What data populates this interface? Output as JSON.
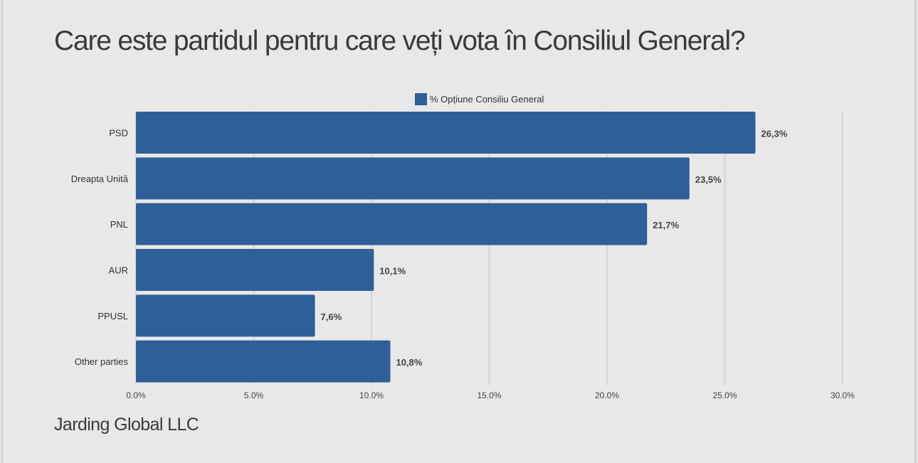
{
  "title": "Care este partidul pentru care veți vota în Consiliul General?",
  "footer": "Jarding Global LLC",
  "chart_data": {
    "type": "bar",
    "orientation": "horizontal",
    "title": "Care este partidul pentru care veți vota în Consiliul General?",
    "categories": [
      "PSD",
      "Dreapta Unită",
      "PNL",
      "AUR",
      "PPUSL",
      "Other parties"
    ],
    "series": [
      {
        "name": "% Opțiune Consiliu General",
        "values": [
          26.3,
          23.5,
          21.7,
          10.1,
          7.6,
          10.8
        ],
        "color": "#2e5f98"
      }
    ],
    "data_labels": [
      "26,3%",
      "23,5%",
      "21,7%",
      "10,1%",
      "7,6%",
      "10,8%"
    ],
    "xlim": [
      0,
      30
    ],
    "xticks": [
      0,
      5,
      10,
      15,
      20,
      25,
      30
    ],
    "xtick_labels": [
      "0.0%",
      "5.0%",
      "10.0%",
      "15.0%",
      "20.0%",
      "25.0%",
      "30.0%"
    ],
    "legend": "top-center",
    "grid": true
  }
}
